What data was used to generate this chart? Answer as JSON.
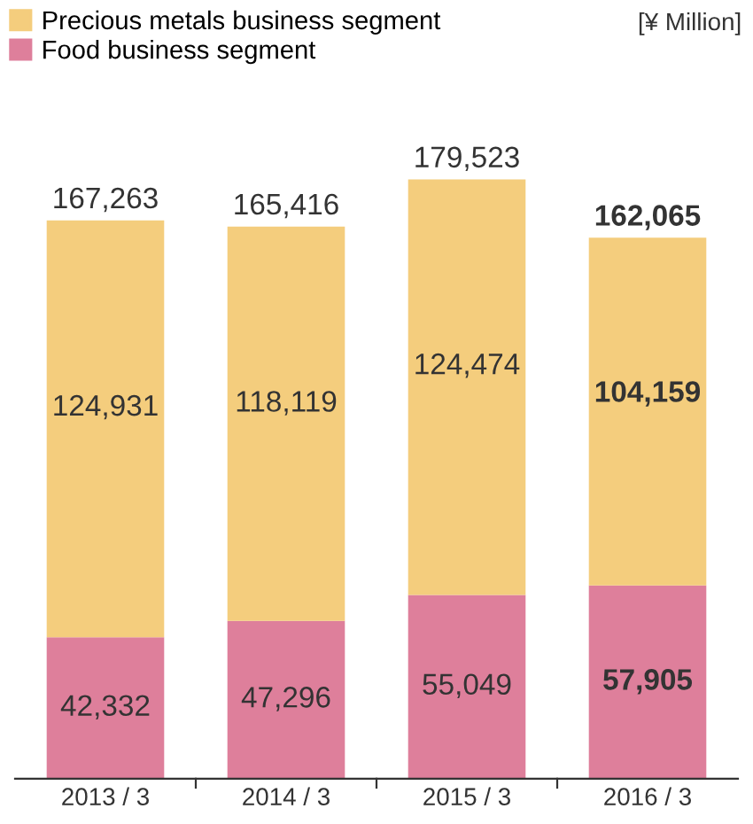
{
  "chart_data": {
    "type": "bar",
    "stacked": true,
    "categories": [
      "2013 / 3",
      "2014 / 3",
      "2015 / 3",
      "2016 / 3"
    ],
    "series": [
      {
        "name": "Food business segment",
        "color": "#de7f9b",
        "values": [
          42332,
          47296,
          55049,
          57905
        ],
        "value_labels": [
          "42,332",
          "47,296",
          "55,049",
          "57,905"
        ]
      },
      {
        "name": "Precious metals business segment",
        "color": "#f4cd7d",
        "values": [
          124931,
          118119,
          124474,
          104159
        ],
        "value_labels": [
          "124,931",
          "118,119",
          "124,474",
          "104,159"
        ]
      }
    ],
    "totals": [
      "167,263",
      "165,416",
      "179,523",
      "162,065"
    ],
    "legend": "top left",
    "grid": false,
    "annotations": [
      "[¥ Million]"
    ]
  }
}
